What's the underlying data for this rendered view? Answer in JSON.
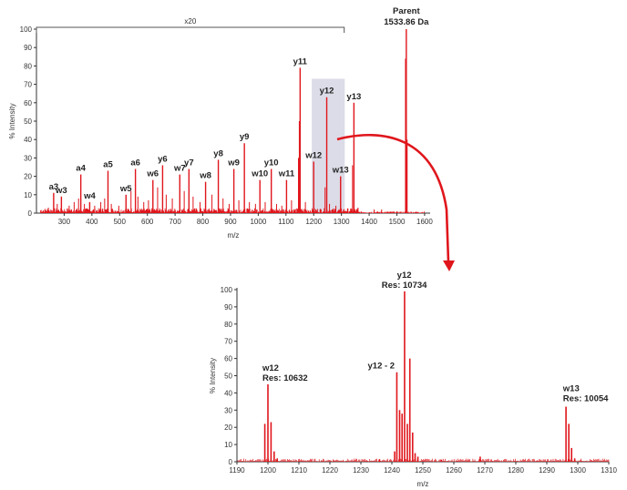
{
  "colors": {
    "spectrum": "#e0161c",
    "highlight": "#dcdce8",
    "axis": "#333333",
    "arrow": "#e0161c"
  },
  "chart_data": [
    {
      "type": "line",
      "subtype": "mass-spectrum",
      "title": "",
      "xlabel": "m/z",
      "ylabel": "% Intensity",
      "xlim": [
        200,
        1620
      ],
      "ylim": [
        0,
        100
      ],
      "xticks": [
        300,
        400,
        500,
        600,
        700,
        800,
        900,
        1000,
        1100,
        1200,
        1300,
        1400,
        1500,
        1600
      ],
      "yticks": [
        0,
        10,
        20,
        30,
        40,
        50,
        60,
        70,
        80,
        90,
        100
      ],
      "grid": false,
      "zoom_bracket": {
        "label": "x20",
        "x_start": 200,
        "x_end": 1310
      },
      "highlight_region": {
        "x_start": 1193,
        "x_end": 1312,
        "y_top": 73
      },
      "parent_label": "Parent\n1533.86 Da",
      "peaks": [
        {
          "x": 262,
          "y": 11,
          "label": "a3"
        },
        {
          "x": 290,
          "y": 9,
          "label": "w3"
        },
        {
          "x": 360,
          "y": 21,
          "label": "a4"
        },
        {
          "x": 392,
          "y": 6,
          "label": "w4"
        },
        {
          "x": 458,
          "y": 23,
          "label": "a5"
        },
        {
          "x": 523,
          "y": 10,
          "label": "w5"
        },
        {
          "x": 557,
          "y": 24,
          "label": "a6"
        },
        {
          "x": 620,
          "y": 18,
          "label": "w6"
        },
        {
          "x": 655,
          "y": 26,
          "label": "y6"
        },
        {
          "x": 717,
          "y": 21,
          "label": "w7"
        },
        {
          "x": 750,
          "y": 24,
          "label": "y7"
        },
        {
          "x": 810,
          "y": 17,
          "label": "w8"
        },
        {
          "x": 856,
          "y": 29,
          "label": "y8"
        },
        {
          "x": 912,
          "y": 24,
          "label": "w9"
        },
        {
          "x": 950,
          "y": 38,
          "label": "y9"
        },
        {
          "x": 1006,
          "y": 18,
          "label": "w10"
        },
        {
          "x": 1047,
          "y": 24,
          "label": "y10"
        },
        {
          "x": 1102,
          "y": 18,
          "label": "w11"
        },
        {
          "x": 1151,
          "y": 79,
          "label": "y11"
        },
        {
          "x": 1200,
          "y": 28,
          "label": "w12"
        },
        {
          "x": 1247,
          "y": 63,
          "label": "y12"
        },
        {
          "x": 1297,
          "y": 20,
          "label": "w13"
        },
        {
          "x": 1345,
          "y": 60,
          "label": "y13"
        },
        {
          "x": 1534,
          "y": 100,
          "label": ""
        }
      ],
      "minor_peaks": [
        {
          "x": 243,
          "y": 3
        },
        {
          "x": 275,
          "y": 5
        },
        {
          "x": 318,
          "y": 4
        },
        {
          "x": 336,
          "y": 6
        },
        {
          "x": 352,
          "y": 8
        },
        {
          "x": 373,
          "y": 5
        },
        {
          "x": 410,
          "y": 4
        },
        {
          "x": 432,
          "y": 6
        },
        {
          "x": 446,
          "y": 8
        },
        {
          "x": 470,
          "y": 5
        },
        {
          "x": 497,
          "y": 4
        },
        {
          "x": 541,
          "y": 12
        },
        {
          "x": 566,
          "y": 9
        },
        {
          "x": 587,
          "y": 6
        },
        {
          "x": 604,
          "y": 7
        },
        {
          "x": 637,
          "y": 14
        },
        {
          "x": 668,
          "y": 10
        },
        {
          "x": 690,
          "y": 8
        },
        {
          "x": 733,
          "y": 12
        },
        {
          "x": 765,
          "y": 9
        },
        {
          "x": 790,
          "y": 6
        },
        {
          "x": 833,
          "y": 10
        },
        {
          "x": 873,
          "y": 8
        },
        {
          "x": 895,
          "y": 5
        },
        {
          "x": 930,
          "y": 7
        },
        {
          "x": 968,
          "y": 6
        },
        {
          "x": 990,
          "y": 5
        },
        {
          "x": 1025,
          "y": 6
        },
        {
          "x": 1066,
          "y": 5
        },
        {
          "x": 1085,
          "y": 4
        },
        {
          "x": 1120,
          "y": 7
        },
        {
          "x": 1145,
          "y": 30
        },
        {
          "x": 1148,
          "y": 50
        },
        {
          "x": 1170,
          "y": 6
        },
        {
          "x": 1241,
          "y": 14
        },
        {
          "x": 1257,
          "y": 5
        },
        {
          "x": 1280,
          "y": 4
        },
        {
          "x": 1340,
          "y": 26
        },
        {
          "x": 1360,
          "y": 3
        },
        {
          "x": 1418,
          "y": 2
        },
        {
          "x": 1445,
          "y": 2
        },
        {
          "x": 1531,
          "y": 84
        },
        {
          "x": 1537,
          "y": 40
        }
      ]
    },
    {
      "type": "line",
      "subtype": "mass-spectrum",
      "title": "",
      "xlabel": "m/z",
      "ylabel": "% Intensity",
      "xlim": [
        1190,
        1310
      ],
      "ylim": [
        0,
        100
      ],
      "xticks": [
        1190,
        1200,
        1210,
        1220,
        1230,
        1240,
        1250,
        1260,
        1270,
        1280,
        1290,
        1300,
        1310
      ],
      "yticks": [
        0,
        10,
        20,
        30,
        40,
        50,
        60,
        70,
        80,
        90,
        100
      ],
      "grid": false,
      "annotations": [
        {
          "x": 1200,
          "y": 45,
          "text": "w12\nRes: 10632",
          "align": "left"
        },
        {
          "x": 1241.5,
          "y": 52,
          "text": "y12 - 2",
          "align": "right"
        },
        {
          "x": 1244,
          "y": 99,
          "text": "y12\nRes: 10734",
          "align": "center"
        },
        {
          "x": 1297,
          "y": 33,
          "text": "w13\nRes: 10054",
          "align": "left"
        }
      ],
      "peaks": [
        {
          "x": 1199.0,
          "y": 22
        },
        {
          "x": 1200.0,
          "y": 45
        },
        {
          "x": 1201.0,
          "y": 23
        },
        {
          "x": 1202.0,
          "y": 6
        },
        {
          "x": 1203.0,
          "y": 2
        },
        {
          "x": 1240.9,
          "y": 6
        },
        {
          "x": 1241.6,
          "y": 52
        },
        {
          "x": 1242.5,
          "y": 30
        },
        {
          "x": 1243.3,
          "y": 28
        },
        {
          "x": 1244.1,
          "y": 99
        },
        {
          "x": 1245.0,
          "y": 22
        },
        {
          "x": 1245.8,
          "y": 60
        },
        {
          "x": 1246.7,
          "y": 17
        },
        {
          "x": 1247.5,
          "y": 5
        },
        {
          "x": 1248.4,
          "y": 3
        },
        {
          "x": 1236.0,
          "y": 1.5
        },
        {
          "x": 1256.0,
          "y": 1.2
        },
        {
          "x": 1268.5,
          "y": 3
        },
        {
          "x": 1296.2,
          "y": 32
        },
        {
          "x": 1297.1,
          "y": 22
        },
        {
          "x": 1298.0,
          "y": 8
        },
        {
          "x": 1299.0,
          "y": 2
        }
      ]
    }
  ]
}
